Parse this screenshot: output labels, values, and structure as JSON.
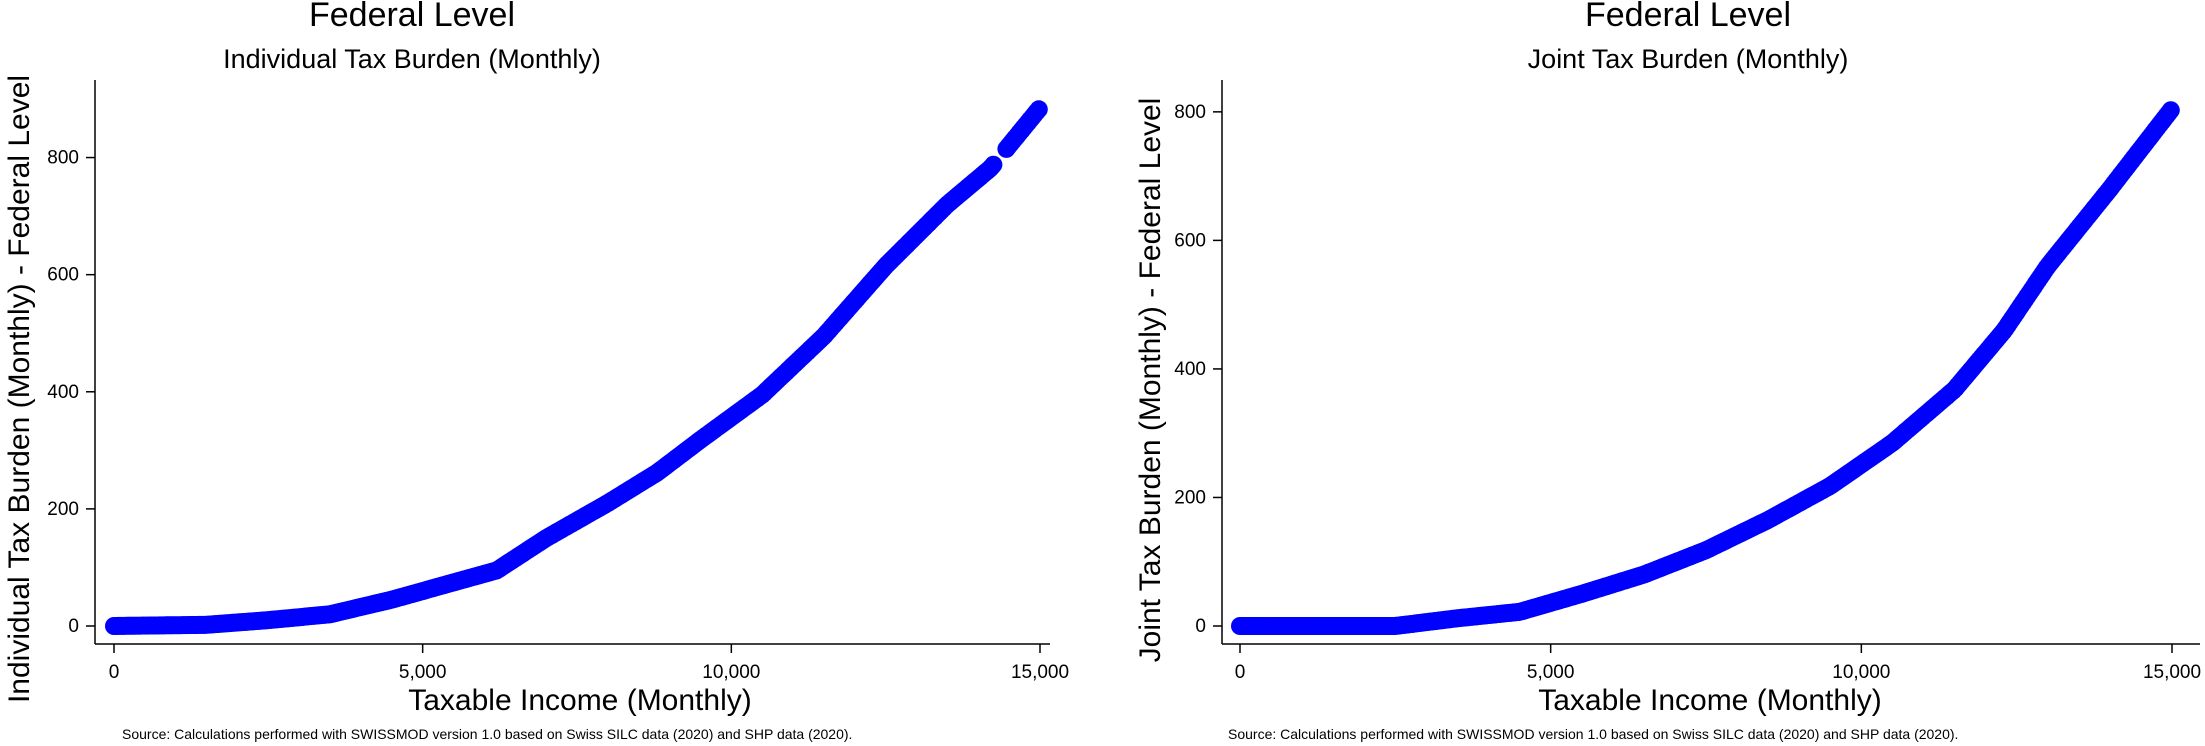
{
  "chart_data": [
    {
      "type": "scatter",
      "title": "Federal Level",
      "subtitle": "Individual Tax Burden (Monthly)",
      "xlabel": "Taxable Income (Monthly)",
      "ylabel": "Individual Tax Burden (Monthly) - Federal Level",
      "xlim": [
        0,
        15000
      ],
      "ylim": [
        0,
        900
      ],
      "xticks": [
        0,
        5000,
        10000,
        15000
      ],
      "xtick_labels": [
        "0",
        "5,000",
        "10,000",
        "15,000"
      ],
      "yticks": [
        0,
        200,
        400,
        600,
        800
      ],
      "ytick_labels": [
        "0",
        "200",
        "400",
        "600",
        "800"
      ],
      "grid": false,
      "marker_color": "#0000ff",
      "source": "Source: Calculations performed with SWISSMOD version 1.0 based on Swiss SILC data (2020) and SHP data (2020).",
      "curve": [
        [
          0,
          0
        ],
        [
          1500,
          2
        ],
        [
          2500,
          10
        ],
        [
          3500,
          20
        ],
        [
          4500,
          45
        ],
        [
          6200,
          95
        ],
        [
          7000,
          150
        ],
        [
          8000,
          210
        ],
        [
          8800,
          262
        ],
        [
          9500,
          318
        ],
        [
          10500,
          395
        ],
        [
          11500,
          495
        ],
        [
          12500,
          615
        ],
        [
          13500,
          720
        ],
        [
          14200,
          782
        ],
        [
          15000,
          885
        ]
      ],
      "gaps": [
        [
          14250,
          14450
        ]
      ]
    },
    {
      "type": "scatter",
      "title": "Federal Level",
      "subtitle": "Joint Tax Burden (Monthly)",
      "xlabel": "Taxable Income (Monthly)",
      "ylabel": "Joint Tax Burden (Monthly) - Federal Level",
      "xlim": [
        0,
        15000
      ],
      "ylim": [
        0,
        820
      ],
      "xticks": [
        0,
        5000,
        10000,
        15000
      ],
      "xtick_labels": [
        "0",
        "5,000",
        "10,000",
        "15,000"
      ],
      "yticks": [
        0,
        200,
        400,
        600,
        800
      ],
      "ytick_labels": [
        "0",
        "200",
        "400",
        "600",
        "800"
      ],
      "grid": false,
      "marker_color": "#0000ff",
      "source": "Source: Calculations performed with SWISSMOD version 1.0 based on Swiss SILC data (2020) and SHP data (2020).",
      "curve": [
        [
          0,
          0
        ],
        [
          2500,
          0
        ],
        [
          3500,
          12
        ],
        [
          4500,
          22
        ],
        [
          5500,
          50
        ],
        [
          6500,
          80
        ],
        [
          7500,
          118
        ],
        [
          8500,
          165
        ],
        [
          9500,
          218
        ],
        [
          10500,
          285
        ],
        [
          11500,
          368
        ],
        [
          12300,
          460
        ],
        [
          13000,
          560
        ],
        [
          14000,
          680
        ],
        [
          15000,
          805
        ]
      ],
      "gaps": []
    }
  ]
}
